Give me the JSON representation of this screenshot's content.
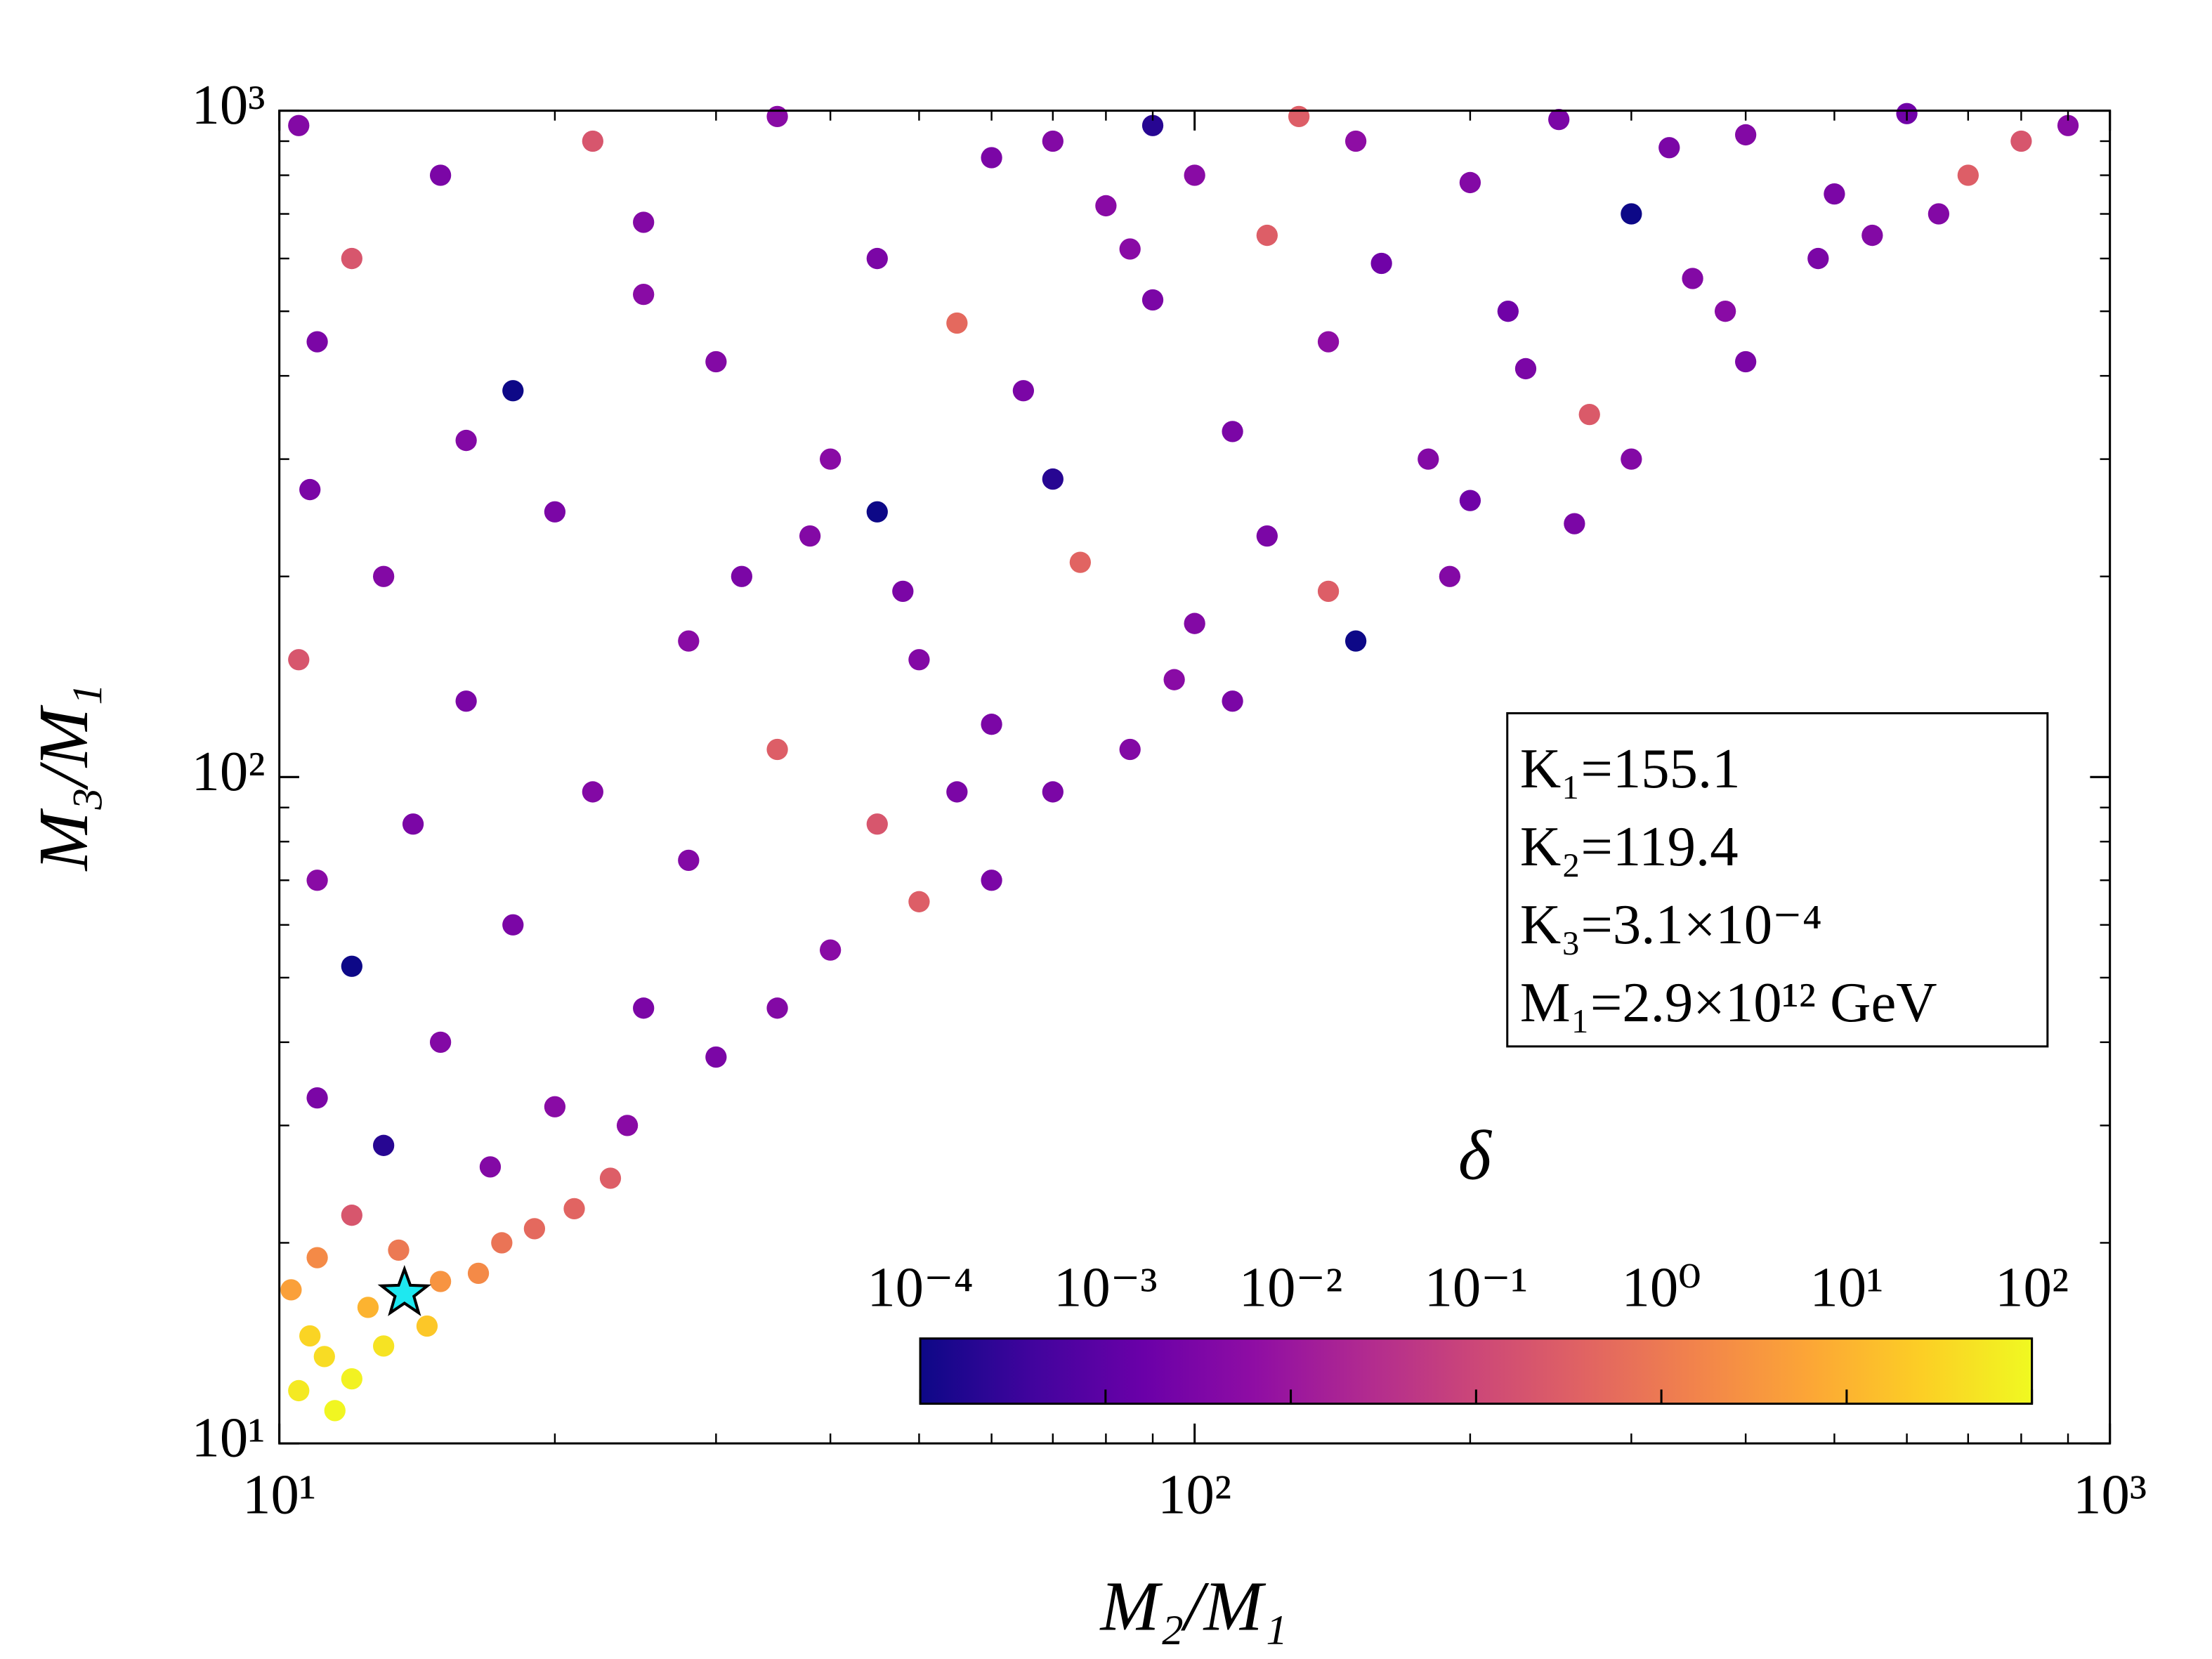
{
  "chart_data": {
    "type": "scatter",
    "xlabel": "M₂/M₁",
    "ylabel": "M₃/M₁",
    "xscale": "log",
    "yscale": "log",
    "xlim": [
      10,
      1000
    ],
    "ylim": [
      10,
      1000
    ],
    "xticks": [
      {
        "value": 10,
        "label": "10¹"
      },
      {
        "value": 100,
        "label": "10²"
      },
      {
        "value": 1000,
        "label": "10³"
      }
    ],
    "yticks": [
      {
        "value": 10,
        "label": "10¹"
      },
      {
        "value": 100,
        "label": "10²"
      },
      {
        "value": 1000,
        "label": "10³"
      }
    ],
    "xminor": [
      20,
      30,
      40,
      50,
      60,
      70,
      80,
      90,
      200,
      300,
      400,
      500,
      600,
      700,
      800,
      900
    ],
    "yminor": [
      20,
      30,
      40,
      50,
      60,
      70,
      80,
      90,
      200,
      300,
      400,
      500,
      600,
      700,
      800,
      900
    ],
    "annotations": [
      "K₁=155.1",
      "K₂=119.4",
      "K₃=3.1×10⁻⁴",
      "M₁=2.9×10¹² GeV"
    ],
    "colorbar": {
      "label": "δ",
      "scale": "log",
      "lim": [
        0.0001,
        100
      ],
      "ticks": [
        {
          "value": 0.0001,
          "label": "10⁻⁴"
        },
        {
          "value": 0.001,
          "label": "10⁻³"
        },
        {
          "value": 0.01,
          "label": "10⁻²"
        },
        {
          "value": 0.1,
          "label": "10⁻¹"
        },
        {
          "value": 1,
          "label": "10⁰"
        },
        {
          "value": 10,
          "label": "10¹"
        },
        {
          "value": 100,
          "label": "10²"
        }
      ],
      "colormap": "plasma",
      "colormap_colors": [
        "#0d0887",
        "#41049d",
        "#6a00a8",
        "#8f0da4",
        "#b12a90",
        "#cc4778",
        "#e16462",
        "#f2844b",
        "#fca636",
        "#fcce25",
        "#f0f921"
      ]
    },
    "x": [
      10.5,
      11.2,
      12,
      10.8,
      13,
      11.5,
      14.5,
      12.5,
      10.3,
      15,
      16.5,
      17.5,
      19,
      21,
      11,
      13.5,
      23,
      12,
      10.5,
      15,
      22,
      35,
      60,
      90,
      150,
      250,
      400,
      600,
      900,
      700,
      500,
      300,
      200,
      120,
      80,
      45,
      25,
      12,
      11,
      18,
      30,
      55,
      90,
      140,
      220,
      350,
      480,
      650,
      400,
      270,
      180,
      110,
      70,
      40,
      20,
      13,
      10.5,
      16,
      28,
      48,
      75,
      120,
      190,
      260,
      150,
      95,
      60,
      35,
      22,
      14,
      11,
      18,
      28,
      45,
      70,
      85,
      110,
      40,
      25,
      15,
      11,
      20,
      30,
      35,
      50,
      60,
      13,
      17,
      24,
      12,
      38,
      65,
      100,
      330,
      800,
      550,
      230,
      160,
      85,
      50,
      32,
      200,
      300,
      380,
      140,
      100,
      55,
      45,
      16,
      10.8,
      25,
      70,
      130
    ],
    "y": [
      12,
      13.5,
      12.5,
      14.5,
      14,
      11.2,
      15,
      16,
      17,
      17.5,
      18,
      20,
      21,
      22.5,
      19,
      19.5,
      25,
      22,
      950,
      800,
      900,
      980,
      850,
      950,
      900,
      970,
      920,
      990,
      950,
      800,
      750,
      700,
      780,
      650,
      720,
      600,
      680,
      600,
      450,
      380,
      420,
      480,
      520,
      450,
      500,
      560,
      600,
      700,
      420,
      350,
      300,
      330,
      280,
      300,
      250,
      200,
      150,
      130,
      160,
      190,
      210,
      230,
      200,
      240,
      160,
      140,
      120,
      110,
      95,
      85,
      70,
      60,
      75,
      85,
      95,
      110,
      130,
      55,
      45,
      40,
      33,
      32,
      38,
      45,
      65,
      70,
      28,
      26,
      30,
      52,
      230,
      380,
      800,
      880,
      900,
      650,
      410,
      590,
      620,
      150,
      200,
      260,
      300,
      500,
      190,
      170,
      95,
      250,
      320,
      270,
      530,
      900,
      980
    ],
    "c": [
      60,
      40,
      80,
      30,
      50,
      90,
      20,
      10,
      5,
      3,
      2,
      0.8,
      0.5,
      0.4,
      2,
      1,
      0.3,
      0.2,
      0.004,
      0.003,
      0.2,
      0.005,
      0.003,
      0.0002,
      0.006,
      0.003,
      0.004,
      0.002,
      0.005,
      0.3,
      0.003,
      0.0001,
      0.004,
      0.3,
      0.005,
      0.003,
      0.004,
      0.2,
      0.003,
      0.0001,
      0.004,
      0.5,
      0.003,
      0.006,
      0.002,
      0.004,
      0.003,
      0.004,
      0.003,
      0.25,
      0.004,
      0.003,
      0.0002,
      0.005,
      0.003,
      0.004,
      0.2,
      0.003,
      0.005,
      0.003,
      0.4,
      0.003,
      0.004,
      0.003,
      0.0001,
      0.005,
      0.003,
      0.3,
      0.004,
      0.003,
      0.005,
      0.003,
      0.004,
      0.2,
      0.003,
      0.004,
      0.003,
      0.005,
      0.003,
      0.004,
      0.003,
      0.005,
      0.003,
      0.004,
      0.3,
      0.003,
      0.0002,
      0.004,
      0.005,
      0.0001,
      0.004,
      0.003,
      0.005,
      0.003,
      0.2,
      0.004,
      0.003,
      0.002,
      0.005,
      0.004,
      0.003,
      0.002,
      0.004,
      0.005,
      0.3,
      0.004,
      0.003,
      0.0001,
      0.004,
      0.003,
      0.005,
      0.004,
      0.3
    ],
    "highlight": {
      "x": 13.7,
      "y": 16.8,
      "color": "#1ee8f0"
    }
  }
}
